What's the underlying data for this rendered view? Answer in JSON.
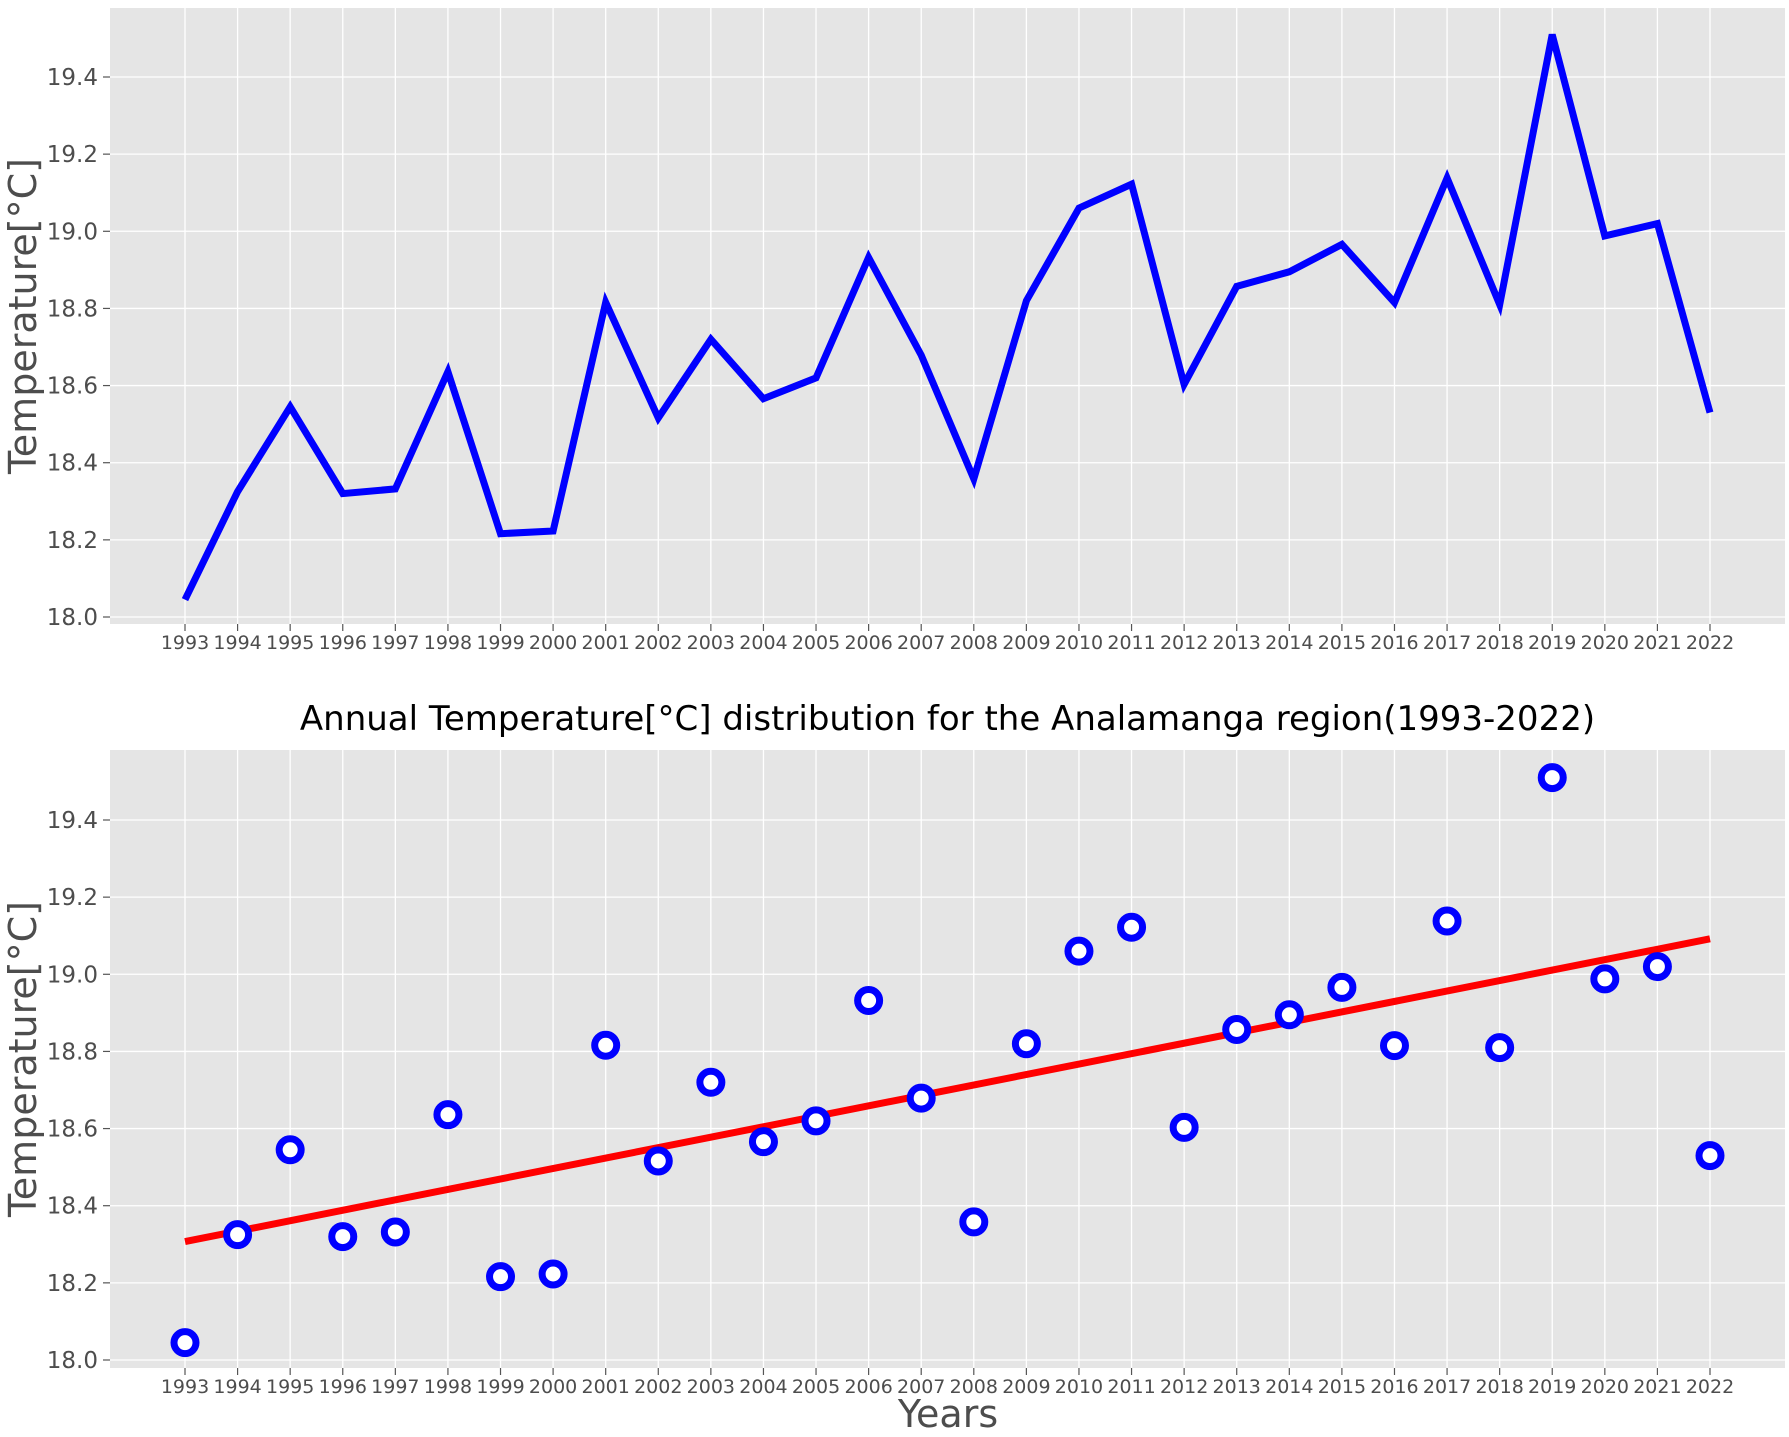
{
  "chart_data": [
    {
      "type": "line",
      "title": "",
      "xlabel": "",
      "ylabel": "Temperature[°C]",
      "ylim": [
        17.97,
        19.58
      ],
      "yticks": [
        18.0,
        18.2,
        18.4,
        18.6,
        18.8,
        19.0,
        19.2,
        19.4
      ],
      "grid": true,
      "background": "#e5e5e5",
      "x": [
        "1993",
        "1994",
        "1995",
        "1996",
        "1997",
        "1998",
        "1999",
        "2000",
        "2001",
        "2002",
        "2003",
        "2004",
        "2005",
        "2006",
        "2007",
        "2008",
        "2009",
        "2010",
        "2011",
        "2012",
        "2013",
        "2014",
        "2015",
        "2016",
        "2017",
        "2018",
        "2019",
        "2020",
        "2021",
        "2022"
      ],
      "series": [
        {
          "color": "#0000ff",
          "values": [
            18.045,
            18.325,
            18.545,
            18.32,
            18.332,
            18.636,
            18.216,
            18.223,
            18.816,
            18.516,
            18.72,
            18.566,
            18.62,
            18.932,
            18.679,
            18.358,
            18.82,
            19.06,
            19.122,
            18.603,
            18.857,
            18.895,
            18.966,
            18.815,
            19.138,
            18.81,
            19.51,
            18.988,
            19.02,
            18.53
          ]
        }
      ]
    },
    {
      "type": "scatter",
      "title": "Annual Temperature[°C] distribution for the Analamanga region(1993-2022)",
      "xlabel": "Years",
      "ylabel": "Temperature[°C]",
      "ylim": [
        17.97,
        19.58
      ],
      "yticks": [
        18.0,
        18.2,
        18.4,
        18.6,
        18.8,
        19.0,
        19.2,
        19.4
      ],
      "grid": true,
      "background": "#e5e5e5",
      "x": [
        "1993",
        "1994",
        "1995",
        "1996",
        "1997",
        "1998",
        "1999",
        "2000",
        "2001",
        "2002",
        "2003",
        "2004",
        "2005",
        "2006",
        "2007",
        "2008",
        "2009",
        "2010",
        "2011",
        "2012",
        "2013",
        "2014",
        "2015",
        "2016",
        "2017",
        "2018",
        "2019",
        "2020",
        "2021",
        "2022"
      ],
      "series": [
        {
          "color": "#0000ff",
          "marker": "circle-hollow",
          "values": [
            18.045,
            18.325,
            18.545,
            18.32,
            18.332,
            18.636,
            18.216,
            18.223,
            18.816,
            18.516,
            18.72,
            18.566,
            18.62,
            18.932,
            18.679,
            18.358,
            18.82,
            19.06,
            19.122,
            18.603,
            18.857,
            18.895,
            18.966,
            18.815,
            19.138,
            18.81,
            19.51,
            18.988,
            19.02,
            18.53
          ]
        }
      ],
      "trendline": {
        "color": "#ff0000",
        "values": [
          18.307,
          19.092
        ]
      }
    }
  ]
}
